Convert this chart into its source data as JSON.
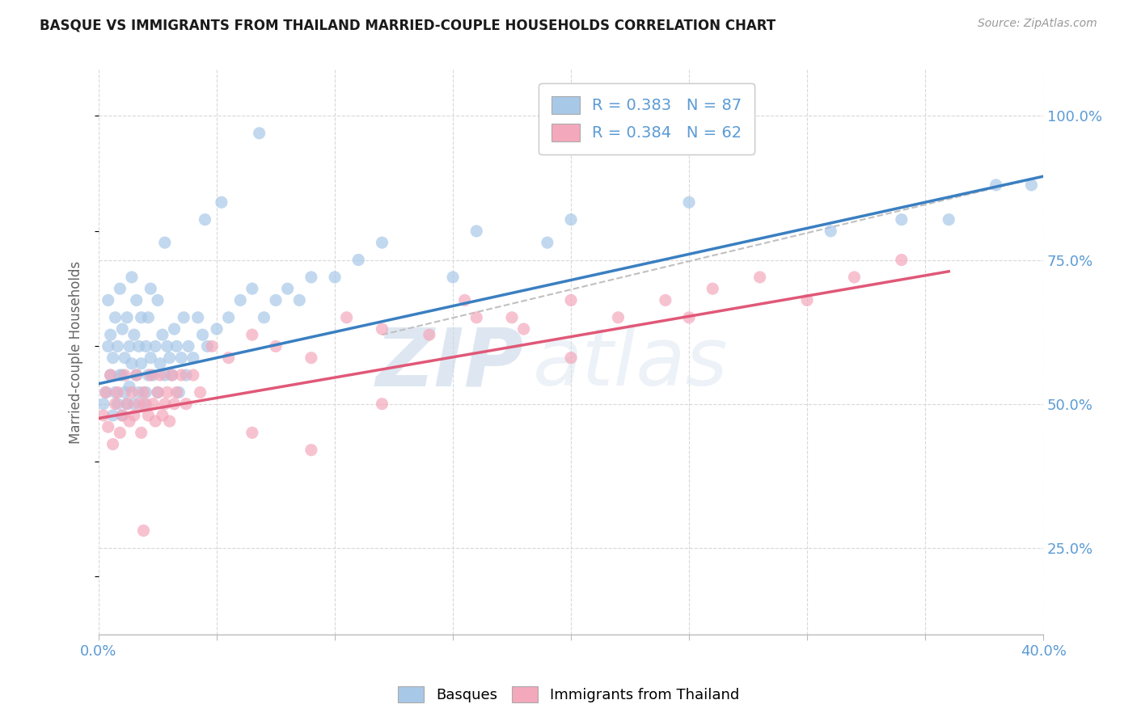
{
  "title": "BASQUE VS IMMIGRANTS FROM THAILAND MARRIED-COUPLE HOUSEHOLDS CORRELATION CHART",
  "source_text": "Source: ZipAtlas.com",
  "ylabel": "Married-couple Households",
  "xlim": [
    0.0,
    0.4
  ],
  "ylim": [
    0.1,
    1.08
  ],
  "yticks_right": [
    0.25,
    0.5,
    0.75,
    1.0
  ],
  "ytick_labels_right": [
    "25.0%",
    "50.0%",
    "75.0%",
    "100.0%"
  ],
  "basque_color": "#a8c8e8",
  "thailand_color": "#f4a8bc",
  "basque_line_color": "#3a7fc1",
  "thailand_line_color": "#e05878",
  "dashed_line_color": "#c0c0c0",
  "R_basque": 0.383,
  "N_basque": 87,
  "R_thailand": 0.384,
  "N_thailand": 62,
  "legend_label_1": "R = 0.383   N = 87",
  "legend_label_2": "R = 0.384   N = 62",
  "legend_label_basques": "Basques",
  "legend_label_thailand": "Immigrants from Thailand",
  "watermark_zip": "ZIP",
  "watermark_atlas": "atlas",
  "title_color": "#1a1a1a",
  "axis_color": "#5b9bd5",
  "grid_color": "#d8d8d8",
  "basque_scatter_x": [
    0.002,
    0.003,
    0.004,
    0.004,
    0.005,
    0.005,
    0.006,
    0.006,
    0.007,
    0.007,
    0.008,
    0.008,
    0.009,
    0.009,
    0.01,
    0.01,
    0.01,
    0.011,
    0.011,
    0.012,
    0.012,
    0.013,
    0.013,
    0.014,
    0.014,
    0.015,
    0.015,
    0.016,
    0.016,
    0.017,
    0.017,
    0.018,
    0.018,
    0.019,
    0.02,
    0.02,
    0.021,
    0.021,
    0.022,
    0.022,
    0.023,
    0.024,
    0.025,
    0.025,
    0.026,
    0.027,
    0.028,
    0.029,
    0.03,
    0.031,
    0.032,
    0.033,
    0.034,
    0.035,
    0.036,
    0.037,
    0.038,
    0.04,
    0.042,
    0.044,
    0.046,
    0.05,
    0.055,
    0.06,
    0.065,
    0.07,
    0.075,
    0.08,
    0.085,
    0.09,
    0.1,
    0.11,
    0.12,
    0.15,
    0.16,
    0.19,
    0.2,
    0.25,
    0.31,
    0.34,
    0.36,
    0.38,
    0.395,
    0.028,
    0.045,
    0.052,
    0.068
  ],
  "basque_scatter_y": [
    0.5,
    0.52,
    0.6,
    0.68,
    0.55,
    0.62,
    0.48,
    0.58,
    0.52,
    0.65,
    0.5,
    0.6,
    0.55,
    0.7,
    0.48,
    0.55,
    0.63,
    0.52,
    0.58,
    0.5,
    0.65,
    0.53,
    0.6,
    0.57,
    0.72,
    0.5,
    0.62,
    0.55,
    0.68,
    0.52,
    0.6,
    0.57,
    0.65,
    0.5,
    0.52,
    0.6,
    0.55,
    0.65,
    0.58,
    0.7,
    0.55,
    0.6,
    0.52,
    0.68,
    0.57,
    0.62,
    0.55,
    0.6,
    0.58,
    0.55,
    0.63,
    0.6,
    0.52,
    0.58,
    0.65,
    0.55,
    0.6,
    0.58,
    0.65,
    0.62,
    0.6,
    0.63,
    0.65,
    0.68,
    0.7,
    0.65,
    0.68,
    0.7,
    0.68,
    0.72,
    0.72,
    0.75,
    0.78,
    0.72,
    0.8,
    0.78,
    0.82,
    0.85,
    0.8,
    0.82,
    0.82,
    0.88,
    0.88,
    0.78,
    0.82,
    0.85,
    0.97
  ],
  "thailand_scatter_x": [
    0.002,
    0.003,
    0.004,
    0.005,
    0.006,
    0.007,
    0.008,
    0.009,
    0.01,
    0.011,
    0.012,
    0.013,
    0.014,
    0.015,
    0.016,
    0.017,
    0.018,
    0.019,
    0.02,
    0.021,
    0.022,
    0.023,
    0.024,
    0.025,
    0.026,
    0.027,
    0.028,
    0.029,
    0.03,
    0.031,
    0.032,
    0.033,
    0.035,
    0.037,
    0.04,
    0.043,
    0.048,
    0.055,
    0.065,
    0.075,
    0.09,
    0.105,
    0.12,
    0.14,
    0.16,
    0.18,
    0.2,
    0.22,
    0.24,
    0.26,
    0.28,
    0.3,
    0.32,
    0.155,
    0.175,
    0.25,
    0.065,
    0.09,
    0.12,
    0.2,
    0.019,
    0.34
  ],
  "thailand_scatter_y": [
    0.48,
    0.52,
    0.46,
    0.55,
    0.43,
    0.5,
    0.52,
    0.45,
    0.48,
    0.55,
    0.5,
    0.47,
    0.52,
    0.48,
    0.55,
    0.5,
    0.45,
    0.52,
    0.5,
    0.48,
    0.55,
    0.5,
    0.47,
    0.52,
    0.55,
    0.48,
    0.5,
    0.52,
    0.47,
    0.55,
    0.5,
    0.52,
    0.55,
    0.5,
    0.55,
    0.52,
    0.6,
    0.58,
    0.62,
    0.6,
    0.58,
    0.65,
    0.63,
    0.62,
    0.65,
    0.63,
    0.68,
    0.65,
    0.68,
    0.7,
    0.72,
    0.68,
    0.72,
    0.68,
    0.65,
    0.65,
    0.45,
    0.42,
    0.5,
    0.58,
    0.28,
    0.75
  ],
  "basque_trend_x": [
    0.0,
    0.4
  ],
  "basque_trend_y": [
    0.535,
    0.895
  ],
  "thailand_trend_x": [
    0.0,
    0.36
  ],
  "thailand_trend_y": [
    0.475,
    0.73
  ],
  "dashed_trend_x": [
    0.12,
    0.4
  ],
  "dashed_trend_y": [
    0.62,
    0.895
  ]
}
